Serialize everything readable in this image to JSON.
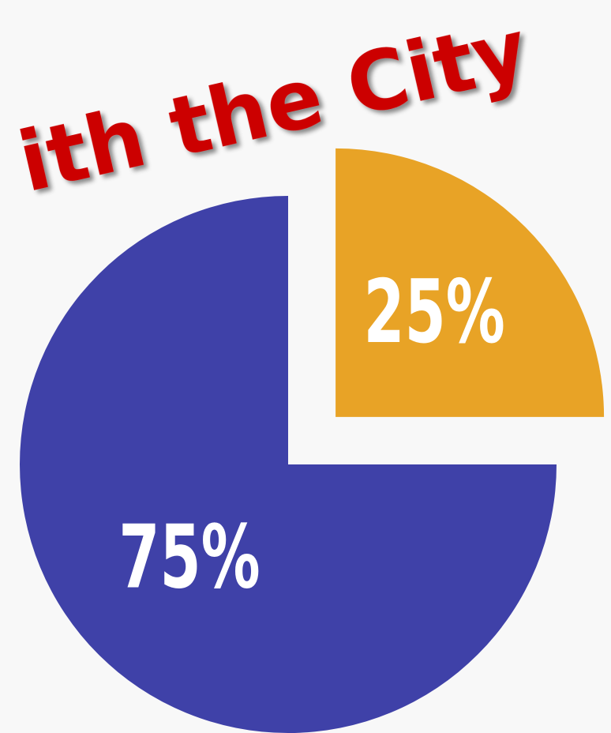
{
  "chart_data": {
    "type": "pie",
    "title": "ith the City",
    "values": [
      25,
      75
    ],
    "value_labels": [
      "25%",
      "75%"
    ],
    "colors": [
      "#e8a326",
      "#3f41a8"
    ],
    "exploded": [
      true,
      false
    ]
  }
}
